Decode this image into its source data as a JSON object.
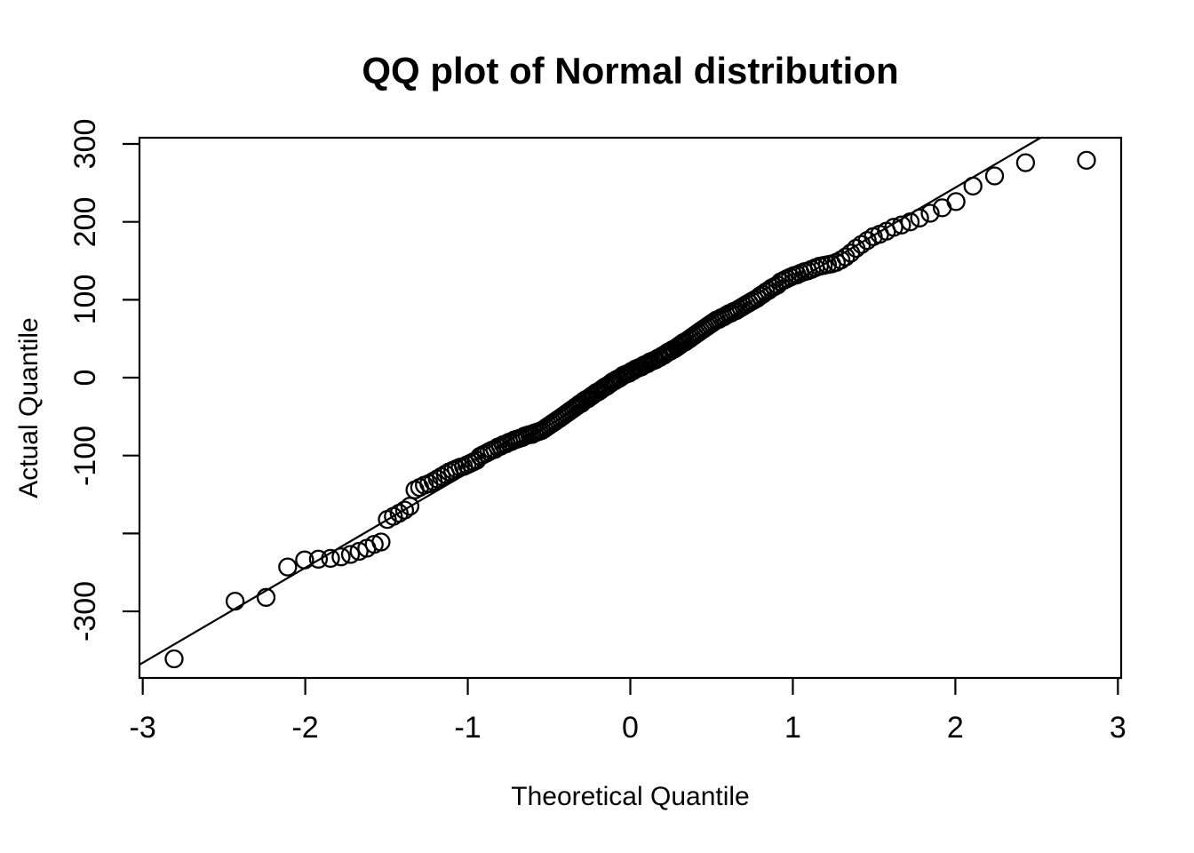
{
  "figure": {
    "background": "#ffffff",
    "ink_color": "#000000"
  },
  "chart_data": {
    "type": "scatter",
    "title": "QQ plot of Normal distribution",
    "xlabel": "Theoretical Quantile",
    "ylabel": "Actual Quantile",
    "xlim": [
      -3.02,
      3.02
    ],
    "ylim": [
      -385.5,
      308
    ],
    "x_ticks": [
      -3,
      -2,
      -1,
      0,
      1,
      2,
      3
    ],
    "x_tick_labels": [
      "-3",
      "-2",
      "-1",
      "0",
      "1",
      "2",
      "3"
    ],
    "y_ticks": [
      300,
      200,
      100,
      0,
      -100,
      -200,
      -300
    ],
    "y_tick_labels": [
      "300",
      "200",
      "100",
      "0",
      "-100",
      "",
      "-300"
    ],
    "grid": false,
    "legend": null,
    "marker": "open-circle",
    "marker_color": "#000000",
    "ref_line": {
      "slope": 122,
      "intercept": 0
    },
    "points": [
      [
        -2.807,
        -361
      ],
      [
        -2.432,
        -287
      ],
      [
        -2.241,
        -282
      ],
      [
        -2.108,
        -243
      ],
      [
        -2.004,
        -234
      ],
      [
        -1.919,
        -233
      ],
      [
        -1.845,
        -232
      ],
      [
        -1.78,
        -230
      ],
      [
        -1.722,
        -227
      ],
      [
        -1.669,
        -223
      ],
      [
        -1.621,
        -219
      ],
      [
        -1.576,
        -214
      ],
      [
        -1.534,
        -211
      ],
      [
        -1.495,
        -182
      ],
      [
        -1.458,
        -178
      ],
      [
        -1.422,
        -174
      ],
      [
        -1.389,
        -170
      ],
      [
        -1.356,
        -165
      ],
      [
        -1.325,
        -144
      ],
      [
        -1.296,
        -141
      ],
      [
        -1.267,
        -138
      ],
      [
        -1.239,
        -136
      ],
      [
        -1.213,
        -133
      ],
      [
        -1.187,
        -130
      ],
      [
        -1.163,
        -127
      ],
      [
        -1.138,
        -124
      ],
      [
        -1.115,
        -121
      ],
      [
        -1.092,
        -119
      ],
      [
        -1.07,
        -117
      ],
      [
        -1.047,
        -115
      ],
      [
        -1.026,
        -114
      ],
      [
        -1.005,
        -112
      ],
      [
        -0.985,
        -110
      ],
      [
        -0.964,
        -108
      ],
      [
        -0.945,
        -106
      ],
      [
        -0.925,
        -101
      ],
      [
        -0.906,
        -99
      ],
      [
        -0.887,
        -97
      ],
      [
        -0.869,
        -95
      ],
      [
        -0.851,
        -93
      ],
      [
        -0.833,
        -92
      ],
      [
        -0.815,
        -89
      ],
      [
        -0.798,
        -88
      ],
      [
        -0.781,
        -86
      ],
      [
        -0.764,
        -85
      ],
      [
        -0.747,
        -83
      ],
      [
        -0.731,
        -82
      ],
      [
        -0.714,
        -80
      ],
      [
        -0.698,
        -79
      ],
      [
        -0.682,
        -78
      ],
      [
        -0.666,
        -77
      ],
      [
        -0.651,
        -75
      ],
      [
        -0.635,
        -74
      ],
      [
        -0.62,
        -73
      ],
      [
        -0.605,
        -73
      ],
      [
        -0.59,
        -71
      ],
      [
        -0.575,
        -70
      ],
      [
        -0.56,
        -69
      ],
      [
        -0.546,
        -68
      ],
      [
        -0.531,
        -66
      ],
      [
        -0.517,
        -64
      ],
      [
        -0.503,
        -62
      ],
      [
        -0.489,
        -60
      ],
      [
        -0.475,
        -58
      ],
      [
        -0.461,
        -56
      ],
      [
        -0.447,
        -54
      ],
      [
        -0.433,
        -52
      ],
      [
        -0.42,
        -50
      ],
      [
        -0.406,
        -48
      ],
      [
        -0.393,
        -46
      ],
      [
        -0.379,
        -44
      ],
      [
        -0.366,
        -42
      ],
      [
        -0.352,
        -40
      ],
      [
        -0.339,
        -38
      ],
      [
        -0.326,
        -36
      ],
      [
        -0.313,
        -34
      ],
      [
        -0.3,
        -33
      ],
      [
        -0.287,
        -30
      ],
      [
        -0.273,
        -28
      ],
      [
        -0.26,
        -27
      ],
      [
        -0.247,
        -25
      ],
      [
        -0.234,
        -23
      ],
      [
        -0.221,
        -21
      ],
      [
        -0.208,
        -19
      ],
      [
        -0.196,
        -18
      ],
      [
        -0.183,
        -16
      ],
      [
        -0.17,
        -14
      ],
      [
        -0.157,
        -12
      ],
      [
        -0.145,
        -11
      ],
      [
        -0.132,
        -9
      ],
      [
        -0.119,
        -7
      ],
      [
        -0.107,
        -5
      ],
      [
        -0.094,
        -4
      ],
      [
        -0.082,
        -2
      ],
      [
        -0.069,
        -1
      ],
      [
        -0.056,
        1
      ],
      [
        -0.044,
        3
      ],
      [
        -0.031,
        4
      ],
      [
        -0.019,
        5
      ],
      [
        -0.006,
        6
      ],
      [
        0.006,
        8
      ],
      [
        0.019,
        9
      ],
      [
        0.031,
        11
      ],
      [
        0.044,
        12
      ],
      [
        0.056,
        13
      ],
      [
        0.069,
        14
      ],
      [
        0.082,
        16
      ],
      [
        0.094,
        17
      ],
      [
        0.107,
        18
      ],
      [
        0.119,
        20
      ],
      [
        0.132,
        21
      ],
      [
        0.145,
        22
      ],
      [
        0.157,
        23
      ],
      [
        0.17,
        25
      ],
      [
        0.183,
        26
      ],
      [
        0.196,
        28
      ],
      [
        0.208,
        29
      ],
      [
        0.221,
        31
      ],
      [
        0.234,
        33
      ],
      [
        0.247,
        34
      ],
      [
        0.26,
        36
      ],
      [
        0.273,
        37
      ],
      [
        0.287,
        39
      ],
      [
        0.3,
        41
      ],
      [
        0.313,
        43
      ],
      [
        0.326,
        45
      ],
      [
        0.339,
        46
      ],
      [
        0.352,
        48
      ],
      [
        0.366,
        50
      ],
      [
        0.379,
        52
      ],
      [
        0.393,
        54
      ],
      [
        0.406,
        56
      ],
      [
        0.42,
        58
      ],
      [
        0.433,
        60
      ],
      [
        0.447,
        62
      ],
      [
        0.461,
        64
      ],
      [
        0.475,
        66
      ],
      [
        0.489,
        68
      ],
      [
        0.503,
        70
      ],
      [
        0.517,
        72
      ],
      [
        0.531,
        74
      ],
      [
        0.546,
        75
      ],
      [
        0.56,
        77
      ],
      [
        0.575,
        78
      ],
      [
        0.59,
        80
      ],
      [
        0.605,
        82
      ],
      [
        0.62,
        83
      ],
      [
        0.635,
        85
      ],
      [
        0.651,
        86
      ],
      [
        0.666,
        88
      ],
      [
        0.682,
        90
      ],
      [
        0.698,
        92
      ],
      [
        0.714,
        94
      ],
      [
        0.731,
        96
      ],
      [
        0.747,
        98
      ],
      [
        0.764,
        100
      ],
      [
        0.781,
        102
      ],
      [
        0.798,
        105
      ],
      [
        0.815,
        107
      ],
      [
        0.833,
        110
      ],
      [
        0.851,
        112
      ],
      [
        0.869,
        115
      ],
      [
        0.887,
        117
      ],
      [
        0.906,
        119
      ],
      [
        0.925,
        123
      ],
      [
        0.945,
        125
      ],
      [
        0.964,
        127
      ],
      [
        0.985,
        129
      ],
      [
        1.005,
        131
      ],
      [
        1.026,
        132
      ],
      [
        1.047,
        134
      ],
      [
        1.07,
        136
      ],
      [
        1.092,
        137
      ],
      [
        1.115,
        139
      ],
      [
        1.138,
        141
      ],
      [
        1.163,
        143
      ],
      [
        1.187,
        144
      ],
      [
        1.213,
        145
      ],
      [
        1.239,
        146
      ],
      [
        1.267,
        148
      ],
      [
        1.296,
        151
      ],
      [
        1.325,
        155
      ],
      [
        1.356,
        160
      ],
      [
        1.389,
        166
      ],
      [
        1.422,
        171
      ],
      [
        1.458,
        176
      ],
      [
        1.495,
        181
      ],
      [
        1.534,
        184
      ],
      [
        1.576,
        188
      ],
      [
        1.621,
        193
      ],
      [
        1.669,
        196
      ],
      [
        1.722,
        200
      ],
      [
        1.78,
        205
      ],
      [
        1.845,
        211
      ],
      [
        1.919,
        218
      ],
      [
        2.004,
        226
      ],
      [
        2.108,
        246
      ],
      [
        2.241,
        259
      ],
      [
        2.432,
        276
      ],
      [
        2.807,
        279
      ]
    ]
  }
}
